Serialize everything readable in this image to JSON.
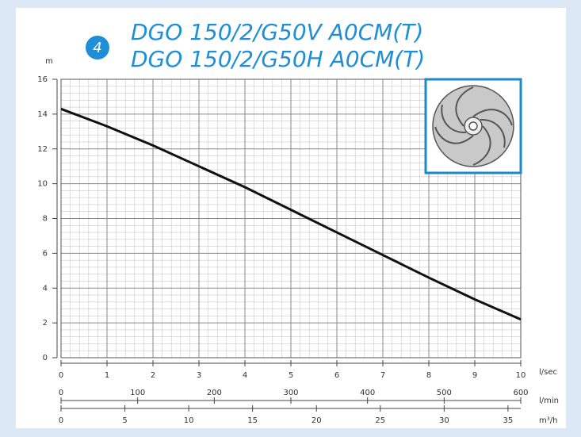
{
  "chart_data": {
    "type": "line",
    "badge": "4",
    "title": "DGO 150/2/G50V A0CM(T)",
    "subtitle": "DGO 150/2/G50H A0CM(T)",
    "ylabel": "m",
    "xlabel": "l/sec",
    "x": [
      0,
      1,
      2,
      3,
      4,
      5,
      6,
      7,
      8,
      9,
      10
    ],
    "series": [
      {
        "color": "#111111",
        "values": [
          14.3,
          13.3,
          12.2,
          11.0,
          9.8,
          8.5,
          7.2,
          5.9,
          4.6,
          3.35,
          2.2
        ]
      }
    ],
    "xlim": [
      0,
      10
    ],
    "xticks": [
      0,
      1,
      2,
      3,
      4,
      5,
      6,
      7,
      8,
      9,
      10
    ],
    "ylim": [
      0,
      16
    ],
    "yticks": [
      0,
      2,
      4,
      6,
      8,
      10,
      12,
      14,
      16
    ],
    "x2label": "l/min",
    "x2lim": [
      0,
      600
    ],
    "x2ticks": [
      0,
      100,
      200,
      300,
      400,
      500,
      600
    ],
    "x3label": "m³/h",
    "x3lim": [
      0,
      36
    ],
    "x3ticks": [
      0,
      5,
      10,
      15,
      20,
      25,
      30,
      35
    ],
    "grid": true,
    "minor_grid": 5
  }
}
